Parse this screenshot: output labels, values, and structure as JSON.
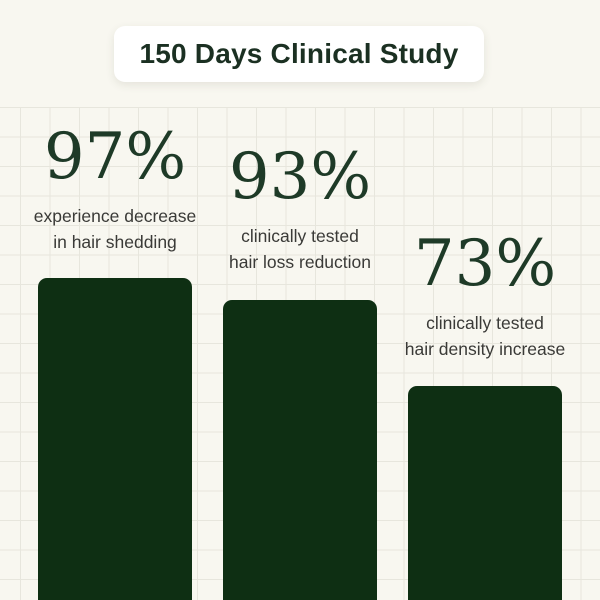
{
  "title": "150 Days Clinical Study",
  "colors": {
    "background": "#f8f7f0",
    "grid_line": "#e7e6dd",
    "bar_fill": "#0e2f13",
    "number_text": "#1e3a27",
    "label_text": "#3a3a37",
    "title_text": "#1b3022",
    "title_pill_background": "#ffffff"
  },
  "chart_data": {
    "type": "bar",
    "title": "150 Days Clinical Study",
    "unit": "percent",
    "ylim": [
      0,
      100
    ],
    "grid": true,
    "legend": "none",
    "bars": [
      {
        "value": 97,
        "value_label": "97%",
        "label_line1": "experience decrease",
        "label_line2": "in hair shedding"
      },
      {
        "value": 93,
        "value_label": "93%",
        "label_line1": "clinically tested",
        "label_line2": "hair loss reduction"
      },
      {
        "value": 73,
        "value_label": "73%",
        "label_line1": "clinically tested",
        "label_line2": "hair density increase"
      }
    ]
  }
}
